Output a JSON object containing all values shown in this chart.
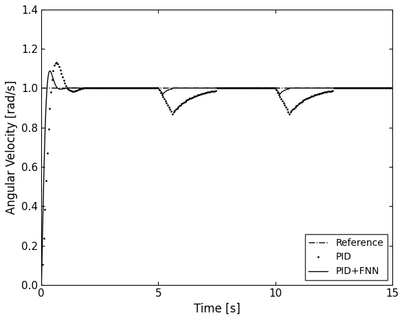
{
  "title": "",
  "xlabel": "Time [s]",
  "ylabel": "Angular Velocity [rad/s]",
  "xlim": [
    0,
    15
  ],
  "ylim": [
    0,
    1.4
  ],
  "yticks": [
    0,
    0.2,
    0.4,
    0.6,
    0.8,
    1.0,
    1.2,
    1.4
  ],
  "xticks": [
    0,
    5,
    10,
    15
  ],
  "legend_labels": [
    "Reference",
    "PID",
    "PID+FNN"
  ],
  "legend_loc": "lower right",
  "figsize": [
    5.88,
    4.66
  ],
  "dpi": 100,
  "line_color": "black",
  "background_color": "white"
}
